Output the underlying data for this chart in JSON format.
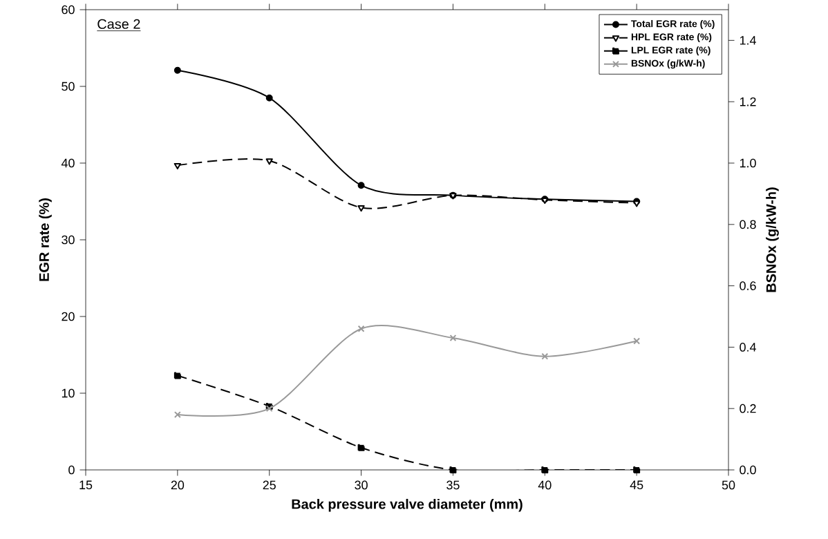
{
  "chart_data": {
    "type": "line",
    "xlabel": "Back pressure valve diameter (mm)",
    "ylabel": "EGR rate (%)",
    "y2label": "BSNOx (g/kW-h)",
    "annotations": [
      "Case 2"
    ],
    "x": [
      20,
      25,
      30,
      35,
      40,
      45
    ],
    "xlim": [
      15,
      50
    ],
    "xticks": [
      15,
      20,
      25,
      30,
      35,
      40,
      45,
      50
    ],
    "ylim": [
      0,
      60
    ],
    "yticks": [
      0,
      10,
      20,
      30,
      40,
      50,
      60
    ],
    "y2lim": [
      0,
      1.5
    ],
    "y2ticks": [
      {
        "value": 0,
        "label": "0.0"
      },
      {
        "value": 0.2,
        "label": "0.2"
      },
      {
        "value": 0.4,
        "label": "0.4"
      },
      {
        "value": 0.6,
        "label": "0.6"
      },
      {
        "value": 0.8,
        "label": "0.8"
      },
      {
        "value": 1.0,
        "label": "1.0"
      },
      {
        "value": 1.2,
        "label": "1.2"
      },
      {
        "value": 1.4,
        "label": "1.4"
      }
    ],
    "legend": "top right",
    "grid": false,
    "series": [
      {
        "name": "Total EGR rate (%)",
        "color": "#000000",
        "marker": "circle",
        "line_style": "solid",
        "values": [
          52.1,
          48.5,
          37.1,
          35.8,
          35.3,
          35.0
        ]
      },
      {
        "name": "HPL EGR rate  (%)",
        "color": "#000000",
        "marker": "triangle",
        "line_style": "dashed",
        "values": [
          39.7,
          40.3,
          34.2,
          35.8,
          35.2,
          34.8
        ]
      },
      {
        "name": "LPL EGR rate  (%)",
        "color": "#000000",
        "marker": "square",
        "line_style": "dashed",
        "values": [
          12.3,
          8.3,
          2.9,
          0,
          0,
          0
        ]
      },
      {
        "name": "BSNOx (g/kW-h)",
        "color": "#999999",
        "marker": "cross",
        "line_style": "solid",
        "axis": "y2",
        "values": [
          0.18,
          0.2,
          0.46,
          0.43,
          0.37,
          0.42
        ]
      }
    ]
  }
}
